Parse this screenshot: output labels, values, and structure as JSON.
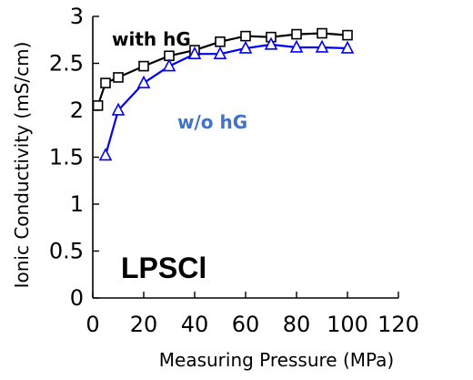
{
  "chart_data": {
    "type": "line",
    "xlabel": "Measuring Pressure (MPa)",
    "ylabel": "Ionic Conductivity (mS/cm)",
    "xlim": [
      0,
      120
    ],
    "ylim": [
      0,
      3
    ],
    "xticks": [
      "0",
      "20",
      "40",
      "60",
      "80",
      "100",
      "120"
    ],
    "yticks": [
      "0",
      "0.5",
      "1",
      "1.5",
      "2",
      "2.5",
      "3"
    ],
    "grid": false,
    "series": [
      {
        "name": "with hG",
        "color": "#000000",
        "marker": "square",
        "x": [
          2,
          5,
          10,
          20,
          30,
          40,
          50,
          60,
          70,
          80,
          90,
          100
        ],
        "y": [
          2.05,
          2.29,
          2.35,
          2.47,
          2.58,
          2.64,
          2.73,
          2.79,
          2.78,
          2.81,
          2.82,
          2.8
        ]
      },
      {
        "name": "w/o hG",
        "color": "#0000ff",
        "label_color": "#4472c4",
        "marker": "triangle",
        "x": [
          5,
          10,
          20,
          30,
          40,
          50,
          60,
          70,
          80,
          90,
          100
        ],
        "y": [
          1.52,
          2.0,
          2.29,
          2.47,
          2.6,
          2.6,
          2.66,
          2.7,
          2.67,
          2.67,
          2.66
        ]
      }
    ],
    "annotations": [
      {
        "text": "LPSCl"
      }
    ]
  }
}
